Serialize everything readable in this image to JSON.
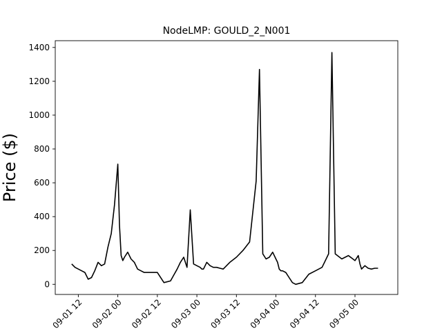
{
  "chart_data": {
    "type": "line",
    "title": "NodeLMP: GOULD_2_N001",
    "xlabel": "",
    "ylabel": "Price ($)",
    "xlim": [
      "2020-09-01 05:00",
      "2020-09-05 13:00"
    ],
    "ylim": [
      -60,
      1440
    ],
    "xticks": [
      {
        "value": "2020-09-01 12:00",
        "label": "09-01 12"
      },
      {
        "value": "2020-09-02 00:00",
        "label": "09-02 00"
      },
      {
        "value": "2020-09-02 12:00",
        "label": "09-02 12"
      },
      {
        "value": "2020-09-03 00:00",
        "label": "09-03 00"
      },
      {
        "value": "2020-09-03 12:00",
        "label": "09-03 12"
      },
      {
        "value": "2020-09-04 00:00",
        "label": "09-04 00"
      },
      {
        "value": "2020-09-04 12:00",
        "label": "09-04 12"
      },
      {
        "value": "2020-09-05 00:00",
        "label": "09-05 00"
      }
    ],
    "yticks": [
      0,
      200,
      400,
      600,
      800,
      1000,
      1200,
      1400
    ],
    "grid": false,
    "line_color": "#000000",
    "series": [
      {
        "x": [
          "2020-09-01 10:00",
          "2020-09-01 11:00",
          "2020-09-01 12:00",
          "2020-09-01 13:00",
          "2020-09-01 14:00",
          "2020-09-01 15:00",
          "2020-09-01 16:00",
          "2020-09-01 17:00",
          "2020-09-01 18:00",
          "2020-09-01 19:00",
          "2020-09-01 20:00",
          "2020-09-01 21:00",
          "2020-09-01 22:00",
          "2020-09-01 23:00",
          "2020-09-02 00:00",
          "2020-09-02 00:30",
          "2020-09-02 01:00",
          "2020-09-02 01:30",
          "2020-09-02 02:00",
          "2020-09-02 03:00",
          "2020-09-02 04:00",
          "2020-09-02 05:00",
          "2020-09-02 06:00",
          "2020-09-02 07:00",
          "2020-09-02 08:00",
          "2020-09-02 09:00",
          "2020-09-02 10:00",
          "2020-09-02 12:00",
          "2020-09-02 14:00",
          "2020-09-02 16:00",
          "2020-09-02 18:00",
          "2020-09-02 19:00",
          "2020-09-02 20:00",
          "2020-09-02 21:00",
          "2020-09-02 22:00",
          "2020-09-02 23:00",
          "2020-09-03 00:00",
          "2020-09-03 01:00",
          "2020-09-03 01:30",
          "2020-09-03 02:00",
          "2020-09-03 03:00",
          "2020-09-03 04:00",
          "2020-09-03 05:00",
          "2020-09-03 06:00",
          "2020-09-03 07:00",
          "2020-09-03 08:00",
          "2020-09-03 10:00",
          "2020-09-03 12:00",
          "2020-09-03 14:00",
          "2020-09-03 16:00",
          "2020-09-03 18:00",
          "2020-09-03 19:00",
          "2020-09-03 20:00",
          "2020-09-03 21:00",
          "2020-09-03 22:00",
          "2020-09-03 23:00",
          "2020-09-04 00:00",
          "2020-09-04 00:30",
          "2020-09-04 01:00",
          "2020-09-04 01:30",
          "2020-09-04 02:00",
          "2020-09-04 03:00",
          "2020-09-04 04:00",
          "2020-09-04 05:00",
          "2020-09-04 06:00",
          "2020-09-04 08:00",
          "2020-09-04 10:00",
          "2020-09-04 12:00",
          "2020-09-04 14:00",
          "2020-09-04 15:00",
          "2020-09-04 16:00",
          "2020-09-04 17:00",
          "2020-09-04 18:00",
          "2020-09-04 20:00",
          "2020-09-04 22:00",
          "2020-09-05 00:00",
          "2020-09-05 01:00",
          "2020-09-05 01:30",
          "2020-09-05 02:00",
          "2020-09-05 03:00",
          "2020-09-05 04:00",
          "2020-09-05 05:00",
          "2020-09-05 06:00",
          "2020-09-05 07:00"
        ],
        "y": [
          120,
          100,
          90,
          80,
          70,
          30,
          40,
          80,
          130,
          110,
          120,
          220,
          300,
          470,
          710,
          350,
          170,
          140,
          160,
          190,
          150,
          130,
          90,
          80,
          70,
          70,
          70,
          70,
          10,
          20,
          90,
          130,
          160,
          100,
          440,
          120,
          110,
          100,
          90,
          90,
          130,
          110,
          100,
          100,
          95,
          90,
          130,
          160,
          200,
          250,
          610,
          1270,
          180,
          150,
          160,
          190,
          150,
          130,
          90,
          80,
          80,
          70,
          40,
          10,
          0,
          10,
          60,
          80,
          100,
          140,
          180,
          1370,
          180,
          150,
          170,
          140,
          170,
          120,
          90,
          110,
          95,
          90,
          95,
          95
        ]
      }
    ]
  }
}
